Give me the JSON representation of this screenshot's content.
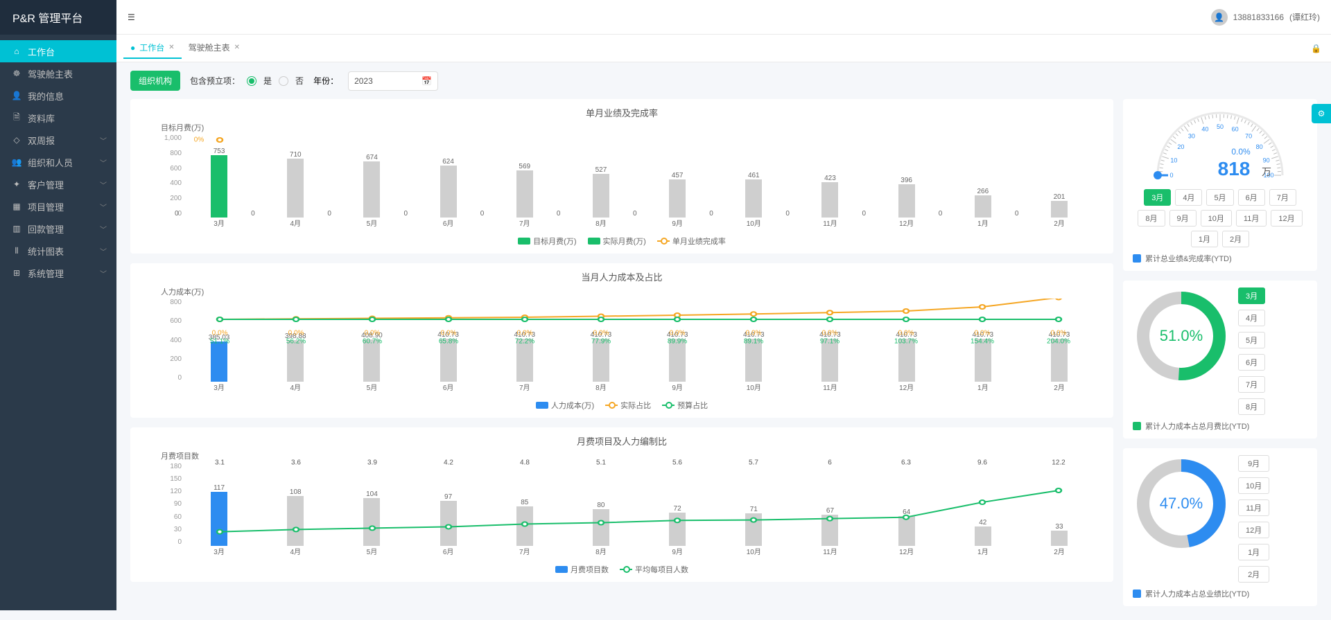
{
  "header": {
    "logo": "P&R 管理平台",
    "user_phone": "13881833166",
    "user_name": "(谭红玲)"
  },
  "sidebar": {
    "items": [
      {
        "icon": "⌂",
        "label": "工作台"
      },
      {
        "icon": "☸",
        "label": "驾驶舱主表"
      },
      {
        "icon": "👤",
        "label": "我的信息"
      },
      {
        "icon": "🗎",
        "label": "资料库"
      },
      {
        "icon": "◇",
        "label": "双周报",
        "expandable": true
      },
      {
        "icon": "👥",
        "label": "组织和人员",
        "expandable": true
      },
      {
        "icon": "✦",
        "label": "客户管理",
        "expandable": true
      },
      {
        "icon": "▦",
        "label": "项目管理",
        "expandable": true
      },
      {
        "icon": "▥",
        "label": "回款管理",
        "expandable": true
      },
      {
        "icon": "⫴",
        "label": "统计图表",
        "expandable": true
      },
      {
        "icon": "⊞",
        "label": "系统管理",
        "expandable": true
      }
    ]
  },
  "tabs": {
    "items": [
      {
        "label": "工作台",
        "active": true,
        "dot": true
      },
      {
        "label": "驾驶舱主表"
      }
    ]
  },
  "controls": {
    "org_btn": "组织机构",
    "prelim_label": "包含预立项：",
    "yes": "是",
    "no": "否",
    "year_label": "年份：",
    "year_value": "2023"
  },
  "chart1": {
    "title": "单月业绩及完成率",
    "y_title": "目标月费(万)",
    "months": [
      "3月",
      "4月",
      "5月",
      "6月",
      "7月",
      "8月",
      "9月",
      "10月",
      "11月",
      "12月",
      "1月",
      "2月"
    ],
    "target": [
      753,
      710,
      674,
      624,
      569,
      527,
      457,
      461,
      423,
      396,
      266,
      201
    ],
    "actual": [
      0,
      0,
      0,
      0,
      0,
      0,
      0,
      0,
      0,
      0,
      0,
      0
    ],
    "completion_pct": [
      "0%",
      "",
      "",
      "",
      "",
      "",
      "",
      "",
      "",
      "",
      "",
      ""
    ],
    "y_ticks": [
      0,
      200,
      400,
      600,
      800,
      1000
    ],
    "colors": {
      "target": "#cfcfcf",
      "actual": "#19be6b",
      "line": "#f5a623"
    },
    "highlight_index": 0,
    "legend": [
      "目标月费(万)",
      "实际月费(万)",
      "单月业绩完成率"
    ]
  },
  "chart2": {
    "title": "当月人力成本及占比",
    "y_title": "人力成本(万)",
    "months": [
      "3月",
      "4月",
      "5月",
      "6月",
      "7月",
      "8月",
      "9月",
      "10月",
      "11月",
      "12月",
      "1月",
      "2月"
    ],
    "cost": [
      385.03,
      398.88,
      408.9,
      410.73,
      410.73,
      410.73,
      410.73,
      410.73,
      410.73,
      410.73,
      410.73,
      410.73
    ],
    "actual_pct_label": [
      "0.0%",
      "0.0%",
      "0.0%",
      "0.0%",
      "0.0%",
      "0.0%",
      "0.0%",
      "0.0%",
      "0.0%",
      "0.0%",
      "0.0%",
      "0.0%"
    ],
    "budget_pct_line": [
      600,
      605,
      610,
      615,
      620,
      630,
      640,
      652,
      665,
      680,
      720,
      810
    ],
    "budget_pct_label": [
      "51.1%",
      "56.2%",
      "60.7%",
      "65.8%",
      "72.2%",
      "77.9%",
      "89.9%",
      "89.1%",
      "97.1%",
      "103.7%",
      "154.4%",
      "204.0%"
    ],
    "budget_line_flat": [
      600,
      600,
      600,
      600,
      600,
      600,
      600,
      600,
      600,
      600,
      600,
      600
    ],
    "y_ticks": [
      0,
      200,
      400,
      600,
      800
    ],
    "colors": {
      "bar": "#cfcfcf",
      "highlight": "#2d8cf0",
      "actual_line": "#f5a623",
      "budget_line": "#19be6b"
    },
    "highlight_index": 0,
    "legend": [
      "人力成本(万)",
      "实际占比",
      "预算占比"
    ]
  },
  "chart3": {
    "title": "月费项目及人力编制比",
    "y_title": "月费项目数",
    "months": [
      "3月",
      "4月",
      "5月",
      "6月",
      "7月",
      "8月",
      "9月",
      "10月",
      "11月",
      "12月",
      "1月",
      "2月"
    ],
    "projects": [
      117,
      108,
      104,
      97,
      85,
      80,
      72,
      71,
      67,
      64,
      42,
      33
    ],
    "ratio": [
      3.1,
      3.6,
      3.9,
      4.2,
      4.8,
      5.1,
      5.6,
      5.7,
      6.0,
      6.3,
      9.6,
      12.2
    ],
    "y_ticks": [
      0,
      30,
      60,
      90,
      120,
      150,
      180
    ],
    "colors": {
      "bar": "#cfcfcf",
      "highlight": "#2d8cf0",
      "line": "#19be6b"
    },
    "highlight_index": 0,
    "legend": [
      "月费项目数",
      "平均每项目人数"
    ]
  },
  "gauge": {
    "percent": "0.0%",
    "value": "818",
    "unit": "万",
    "ticks": [
      "0",
      "10",
      "20",
      "30",
      "40",
      "50",
      "60",
      "70",
      "80",
      "90",
      "100"
    ],
    "needle_color": "#2d8cf0",
    "months": [
      "3月",
      "4月",
      "5月",
      "6月",
      "7月",
      "8月",
      "9月",
      "10月",
      "11月",
      "12月",
      "1月",
      "2月"
    ],
    "active_month": 0,
    "ytd_label": "累计总业绩&完成率(YTD)",
    "ytd_color": "#2d8cf0"
  },
  "donut1": {
    "percent": 51.0,
    "text": "51.0%",
    "color": "#19be6b",
    "bg": "#cfcfcf",
    "months": [
      "3月",
      "4月",
      "5月",
      "6月",
      "7月",
      "8月"
    ],
    "active": 0,
    "ytd_label": "累计人力成本占总月费比(YTD)"
  },
  "donut2": {
    "percent": 47.0,
    "text": "47.0%",
    "color": "#2d8cf0",
    "bg": "#cfcfcf",
    "months": [
      "9月",
      "10月",
      "11月",
      "12月",
      "1月",
      "2月"
    ],
    "active": -1,
    "ytd_label": "累计人力成本占总业绩比(YTD)"
  }
}
